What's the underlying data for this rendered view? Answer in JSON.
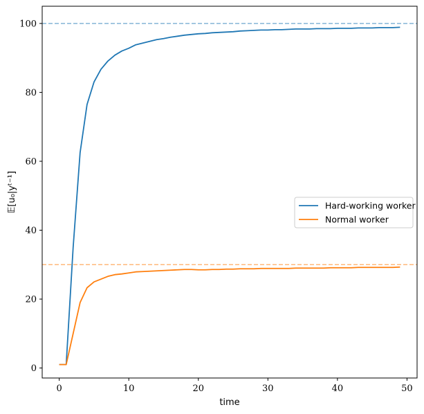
{
  "chart_data": {
    "type": "line",
    "title": "",
    "xlabel": "time",
    "ylabel": "𝔼[u₀|yᵗ⁻¹]",
    "xlim": [
      -2.45,
      51.45
    ],
    "ylim": [
      -2.9,
      105
    ],
    "xticks": [
      0,
      10,
      20,
      30,
      40,
      50
    ],
    "yticks": [
      0,
      20,
      40,
      60,
      80,
      100
    ],
    "grid": false,
    "legend_position": "center-right",
    "series": [
      {
        "name": "Hard-working worker",
        "color": "#1f77b4",
        "x": [
          0,
          1,
          2,
          3,
          4,
          5,
          6,
          7,
          8,
          9,
          10,
          11,
          12,
          13,
          14,
          15,
          16,
          17,
          18,
          19,
          20,
          21,
          22,
          23,
          24,
          25,
          26,
          27,
          28,
          29,
          30,
          31,
          32,
          33,
          34,
          35,
          36,
          37,
          38,
          39,
          40,
          41,
          42,
          43,
          44,
          45,
          46,
          47,
          48,
          49
        ],
        "y": [
          1,
          1,
          35,
          62.5,
          76.5,
          83,
          86.7,
          89.1,
          90.8,
          92,
          92.8,
          93.8,
          94.3,
          94.8,
          95.3,
          95.6,
          96,
          96.3,
          96.6,
          96.8,
          97,
          97.1,
          97.3,
          97.4,
          97.5,
          97.6,
          97.8,
          97.9,
          98,
          98.1,
          98.1,
          98.2,
          98.2,
          98.3,
          98.4,
          98.4,
          98.4,
          98.5,
          98.5,
          98.5,
          98.6,
          98.6,
          98.6,
          98.7,
          98.7,
          98.7,
          98.8,
          98.8,
          98.8,
          98.9
        ]
      },
      {
        "name": "Normal worker",
        "color": "#ff7f0e",
        "x": [
          0,
          1,
          2,
          3,
          4,
          5,
          6,
          7,
          8,
          9,
          10,
          11,
          12,
          13,
          14,
          15,
          16,
          17,
          18,
          19,
          20,
          21,
          22,
          23,
          24,
          25,
          26,
          27,
          28,
          29,
          30,
          31,
          32,
          33,
          34,
          35,
          36,
          37,
          38,
          39,
          40,
          41,
          42,
          43,
          44,
          45,
          46,
          47,
          48,
          49
        ],
        "y": [
          1,
          1,
          10,
          19,
          23.3,
          25,
          25.8,
          26.6,
          27.1,
          27.3,
          27.6,
          27.9,
          28,
          28.1,
          28.2,
          28.3,
          28.4,
          28.5,
          28.6,
          28.6,
          28.5,
          28.5,
          28.6,
          28.6,
          28.7,
          28.7,
          28.8,
          28.8,
          28.8,
          28.9,
          28.9,
          28.9,
          28.9,
          28.9,
          29,
          29,
          29,
          29,
          29,
          29.1,
          29.1,
          29.1,
          29.1,
          29.2,
          29.2,
          29.2,
          29.2,
          29.2,
          29.2,
          29.3
        ]
      }
    ],
    "reference_lines": [
      {
        "orientation": "horizontal",
        "y": 100,
        "color": "#1f77b4",
        "style": "dashed"
      },
      {
        "orientation": "horizontal",
        "y": 30,
        "color": "#ff7f0e",
        "style": "dashed"
      }
    ]
  }
}
